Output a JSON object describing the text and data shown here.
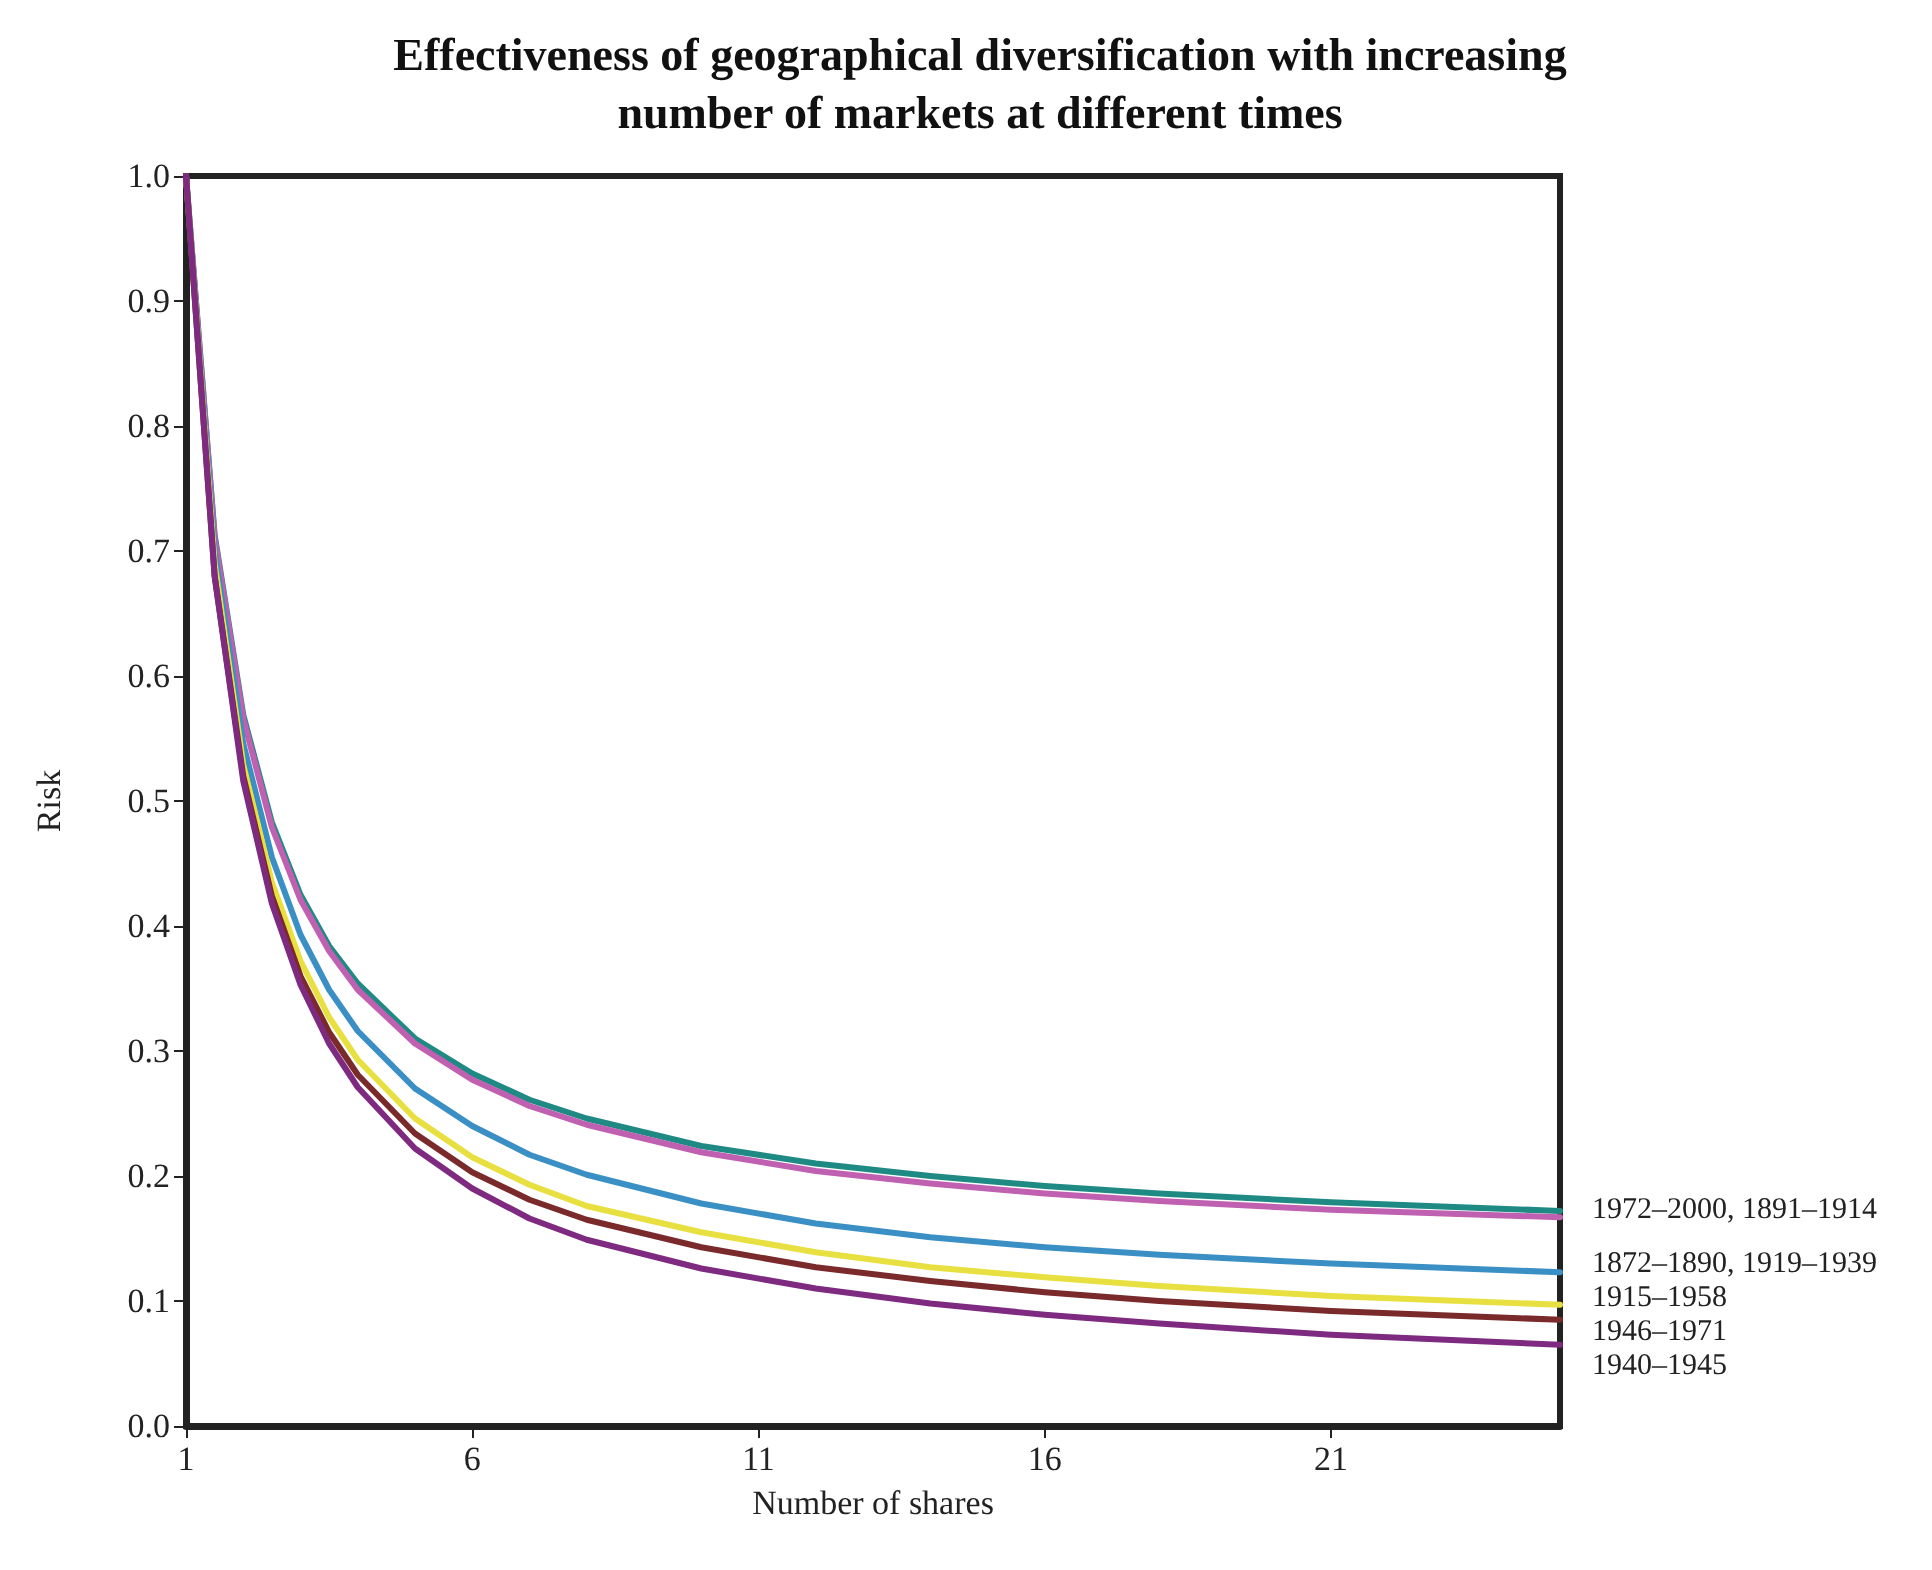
{
  "chart_data": {
    "type": "line",
    "title": "Effectiveness of geographical diversification with increasing\nnumber of markets at different times",
    "xlabel": "Number of shares",
    "ylabel": "Risk",
    "x": [
      1,
      1.5,
      2,
      2.5,
      3,
      3.5,
      4,
      5,
      6,
      7,
      8,
      10,
      12,
      14,
      16,
      18,
      21,
      25
    ],
    "series": [
      {
        "color": "#1f8a84",
        "values": [
          1.0,
          0.713,
          0.569,
          0.483,
          0.425,
          0.384,
          0.354,
          0.31,
          0.282,
          0.261,
          0.246,
          0.224,
          0.21,
          0.2,
          0.192,
          0.186,
          0.179,
          0.172
        ]
      },
      {
        "color": "#c060b0",
        "values": [
          1.0,
          0.711,
          0.566,
          0.479,
          0.421,
          0.38,
          0.349,
          0.306,
          0.277,
          0.256,
          0.241,
          0.219,
          0.204,
          0.194,
          0.186,
          0.18,
          0.173,
          0.167
        ]
      },
      {
        "color": "#3a8fc4",
        "values": [
          1.0,
          0.7,
          0.546,
          0.455,
          0.393,
          0.349,
          0.316,
          0.27,
          0.24,
          0.217,
          0.201,
          0.178,
          0.162,
          0.151,
          0.143,
          0.137,
          0.13,
          0.123
        ]
      },
      {
        "color": "#e8e040",
        "values": [
          1.0,
          0.69,
          0.529,
          0.435,
          0.372,
          0.327,
          0.293,
          0.246,
          0.215,
          0.193,
          0.176,
          0.155,
          0.139,
          0.127,
          0.119,
          0.112,
          0.104,
          0.097
        ]
      },
      {
        "color": "#7a2a2a",
        "values": [
          1.0,
          0.68,
          0.52,
          0.424,
          0.36,
          0.315,
          0.281,
          0.234,
          0.203,
          0.181,
          0.165,
          0.143,
          0.127,
          0.116,
          0.107,
          0.1,
          0.092,
          0.085
        ]
      },
      {
        "color": "#7e2a80",
        "values": [
          1.0,
          0.68,
          0.516,
          0.418,
          0.353,
          0.306,
          0.271,
          0.222,
          0.19,
          0.166,
          0.149,
          0.126,
          0.11,
          0.098,
          0.089,
          0.082,
          0.073,
          0.065
        ]
      }
    ],
    "annotations": [
      "1972–2000, 1891–1914",
      "1872–1890, 1919–1939",
      "1915–1958",
      "1946–1971",
      "1940–1945"
    ],
    "xlim": [
      1,
      25
    ],
    "xticks": [
      1,
      6,
      11,
      16,
      21
    ],
    "ylim": [
      0,
      1
    ],
    "yticks": [
      {
        "value": 0,
        "label": "0.0"
      },
      {
        "value": 0.1,
        "label": "0.1"
      },
      {
        "value": 0.2,
        "label": "0.2"
      },
      {
        "value": 0.3,
        "label": "0.3"
      },
      {
        "value": 0.4,
        "label": "0.4"
      },
      {
        "value": 0.5,
        "label": "0.5"
      },
      {
        "value": 0.6,
        "label": "0.6"
      },
      {
        "value": 0.7,
        "label": "0.7"
      },
      {
        "value": 0.8,
        "label": "0.8"
      },
      {
        "value": 0.9,
        "label": "0.9"
      },
      {
        "value": 1,
        "label": "1.0"
      }
    ],
    "grid": false,
    "marker": "none",
    "line_style": "solid"
  }
}
